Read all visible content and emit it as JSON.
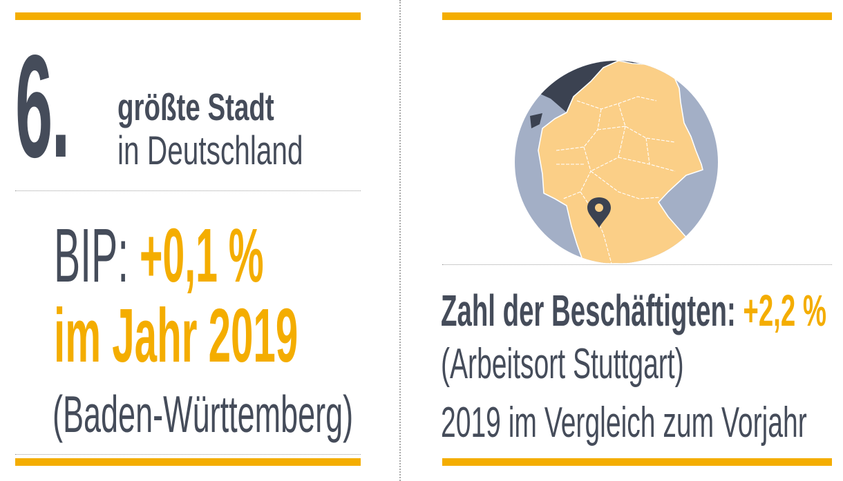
{
  "rank": {
    "number": "6.",
    "line1": "größte Stadt",
    "line2": "in Deutschland"
  },
  "gdp": {
    "label": "BIP:",
    "value": "+0,1 %",
    "year_text": "im Jahr 2019",
    "region": "(Baden-Württemberg)"
  },
  "employment": {
    "label": "Zahl der Beschäftigten:",
    "value": "+2,2 %",
    "sub1": "(Arbeitsort Stuttgart)",
    "sub2": "2019 im Vergleich zum Vorjahr"
  },
  "map": {
    "icon": "location-pin-icon"
  },
  "colors": {
    "accent": "#f4ad00",
    "text": "#454c5a",
    "map_land": "#fbcf87",
    "map_outside": "#a3afc6",
    "map_sea": "#3b4251"
  }
}
